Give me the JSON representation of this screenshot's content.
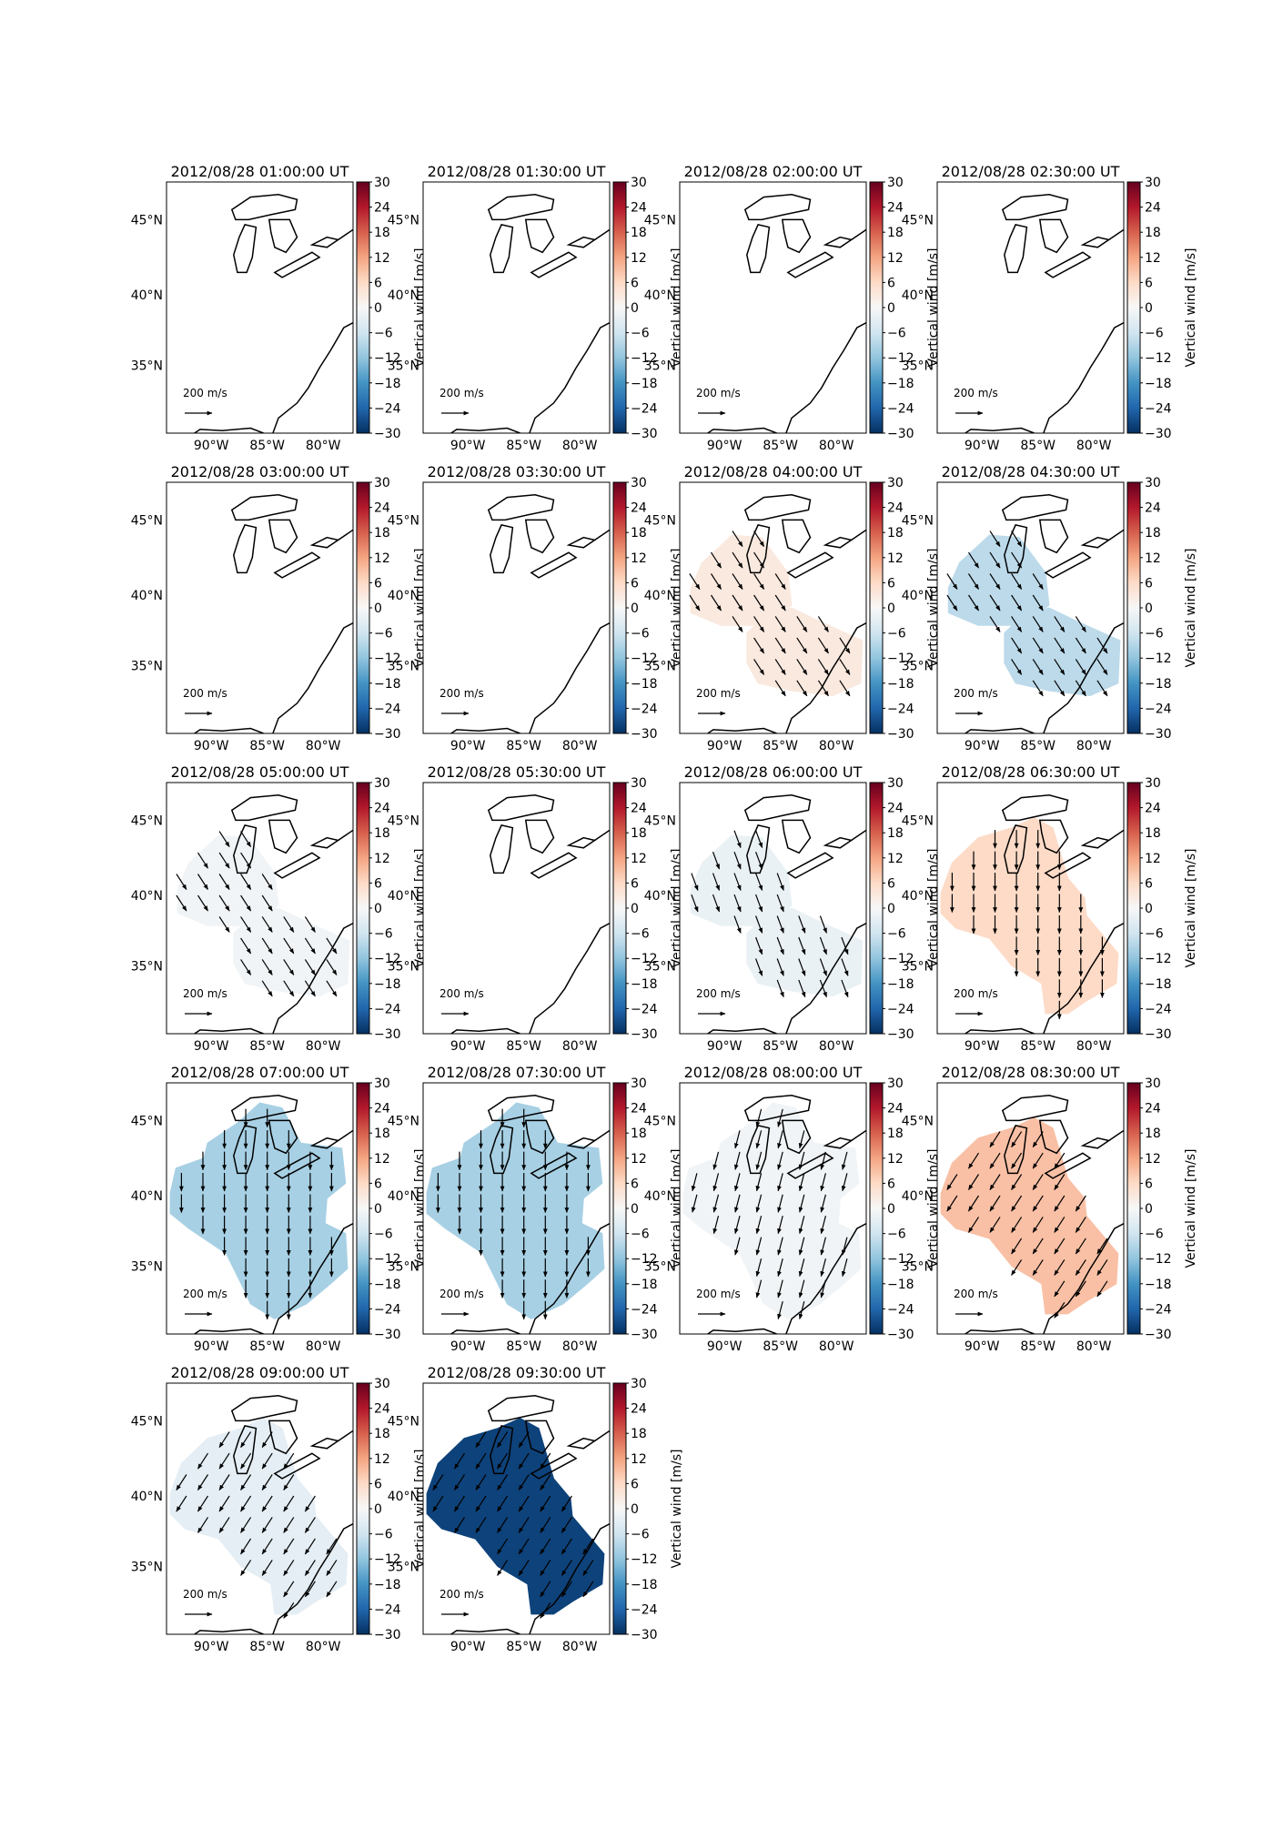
{
  "figure": {
    "colorbar_label": "Vertical wind [m/s]",
    "colorbar_ticks": [
      "30",
      "24",
      "18",
      "12",
      "6",
      "0",
      "−6",
      "−12",
      "−18",
      "−24",
      "−30"
    ],
    "lat_labels": [
      "45°N",
      "40°N",
      "35°N"
    ],
    "lon_labels": [
      "90°W",
      "85°W",
      "80°W"
    ],
    "scale_arrow_label": "200 m/s",
    "colors": {
      "map_outline": "#000000",
      "arrow": "#000000"
    }
  },
  "chart_data": [
    {
      "type": "heatmap",
      "title": "2012/08/28 01:00:00 UT",
      "zlim": [
        -30,
        30
      ],
      "region": "none",
      "vertical_wind": null,
      "arrow_dir": "none"
    },
    {
      "type": "heatmap",
      "title": "2012/08/28 01:30:00 UT",
      "zlim": [
        -30,
        30
      ],
      "region": "none",
      "vertical_wind": null,
      "arrow_dir": "none"
    },
    {
      "type": "heatmap",
      "title": "2012/08/28 02:00:00 UT",
      "zlim": [
        -30,
        30
      ],
      "region": "none",
      "vertical_wind": null,
      "arrow_dir": "none"
    },
    {
      "type": "heatmap",
      "title": "2012/08/28 02:30:00 UT",
      "zlim": [
        -30,
        30
      ],
      "region": "none",
      "vertical_wind": null,
      "arrow_dir": "none"
    },
    {
      "type": "heatmap",
      "title": "2012/08/28 03:00:00 UT",
      "zlim": [
        -30,
        30
      ],
      "region": "none",
      "vertical_wind": null,
      "arrow_dir": "none"
    },
    {
      "type": "heatmap",
      "title": "2012/08/28 03:30:00 UT",
      "zlim": [
        -30,
        30
      ],
      "region": "none",
      "vertical_wind": null,
      "arrow_dir": "none"
    },
    {
      "type": "heatmap",
      "title": "2012/08/28 04:00:00 UT",
      "zlim": [
        -30,
        30
      ],
      "region": "small",
      "vertical_wind": 3,
      "arrow_dir": "SE"
    },
    {
      "type": "heatmap",
      "title": "2012/08/28 04:30:00 UT",
      "zlim": [
        -30,
        30
      ],
      "region": "small",
      "vertical_wind": -8,
      "arrow_dir": "SE"
    },
    {
      "type": "heatmap",
      "title": "2012/08/28 05:00:00 UT",
      "zlim": [
        -30,
        30
      ],
      "region": "small",
      "vertical_wind": -1,
      "arrow_dir": "SE"
    },
    {
      "type": "heatmap",
      "title": "2012/08/28 05:30:00 UT",
      "zlim": [
        -30,
        30
      ],
      "region": "none",
      "vertical_wind": null,
      "arrow_dir": "none"
    },
    {
      "type": "heatmap",
      "title": "2012/08/28 06:00:00 UT",
      "zlim": [
        -30,
        30
      ],
      "region": "small",
      "vertical_wind": -2,
      "arrow_dir": "SSE"
    },
    {
      "type": "heatmap",
      "title": "2012/08/28 06:30:00 UT",
      "zlim": [
        -30,
        30
      ],
      "region": "medium",
      "vertical_wind": 6,
      "arrow_dir": "S"
    },
    {
      "type": "heatmap",
      "title": "2012/08/28 07:00:00 UT",
      "zlim": [
        -30,
        30
      ],
      "region": "large",
      "vertical_wind": -10,
      "arrow_dir": "S"
    },
    {
      "type": "heatmap",
      "title": "2012/08/28 07:30:00 UT",
      "zlim": [
        -30,
        30
      ],
      "region": "large",
      "vertical_wind": -10,
      "arrow_dir": "S"
    },
    {
      "type": "heatmap",
      "title": "2012/08/28 08:00:00 UT",
      "zlim": [
        -30,
        30
      ],
      "region": "large",
      "vertical_wind": -1,
      "arrow_dir": "SSW"
    },
    {
      "type": "heatmap",
      "title": "2012/08/28 08:30:00 UT",
      "zlim": [
        -30,
        30
      ],
      "region": "medium",
      "vertical_wind": 9,
      "arrow_dir": "SW"
    },
    {
      "type": "heatmap",
      "title": "2012/08/28 09:00:00 UT",
      "zlim": [
        -30,
        30
      ],
      "region": "medium",
      "vertical_wind": -3,
      "arrow_dir": "SW"
    },
    {
      "type": "heatmap",
      "title": "2012/08/28 09:30:00 UT",
      "zlim": [
        -30,
        30
      ],
      "region": "medium",
      "vertical_wind": -28,
      "arrow_dir": "SW"
    }
  ]
}
